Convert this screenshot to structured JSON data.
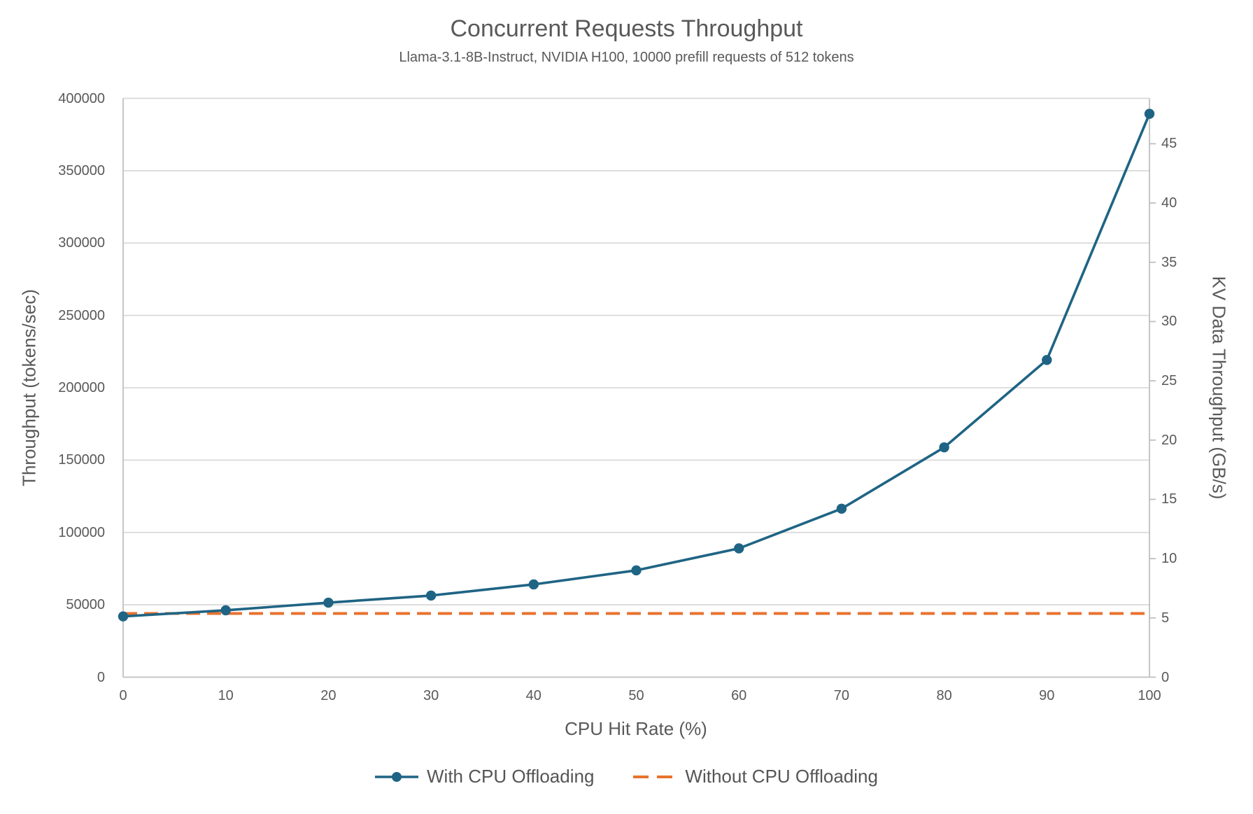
{
  "chart": {
    "title": "Concurrent Requests Throughput",
    "subtitle": "Llama-3.1-8B-Instruct, NVIDIA H100, 10000 prefill requests of 512 tokens"
  },
  "chart_data": {
    "type": "line",
    "title": "Concurrent Requests Throughput",
    "subtitle": "Llama-3.1-8B-Instruct, NVIDIA H100, 10000 prefill requests of 512 tokens",
    "xlabel": "CPU Hit Rate (%)",
    "x": [
      0,
      10,
      20,
      30,
      40,
      50,
      60,
      70,
      80,
      90,
      100
    ],
    "xlim": [
      0,
      100
    ],
    "x_ticks": [
      0,
      10,
      20,
      30,
      40,
      50,
      60,
      70,
      80,
      90,
      100
    ],
    "left_axis": {
      "label": "Throughput (tokens/sec)",
      "lim": [
        0,
        400000
      ],
      "ticks": [
        0,
        50000,
        100000,
        150000,
        200000,
        250000,
        300000,
        350000,
        400000
      ]
    },
    "right_axis": {
      "label": "KV Data Throughput (GB/s)",
      "lim": [
        0,
        48.83
      ],
      "ticks": [
        0,
        5,
        10,
        15,
        20,
        25,
        30,
        35,
        40,
        45
      ]
    },
    "grid": "horizontal",
    "legend_position": "bottom",
    "series": [
      {
        "name": "With CPU Offloading",
        "color": "#1F6484",
        "style": "solid",
        "marker": "circle",
        "axis": "left",
        "values": [
          42000,
          46200,
          51500,
          56400,
          64100,
          73800,
          89000,
          116400,
          158800,
          219200,
          389300
        ]
      },
      {
        "name": "Without CPU Offloading",
        "color": "#E8722E",
        "style": "dashed",
        "marker": "none",
        "axis": "left",
        "values": [
          44000,
          44000,
          44000,
          44000,
          44000,
          44000,
          44000,
          44000,
          44000,
          44000,
          44000
        ]
      }
    ]
  },
  "colors": {
    "text": "#595959",
    "gridline": "#D9D9D9",
    "axis_line": "#BFBFBF",
    "background": "#FFFFFF"
  }
}
